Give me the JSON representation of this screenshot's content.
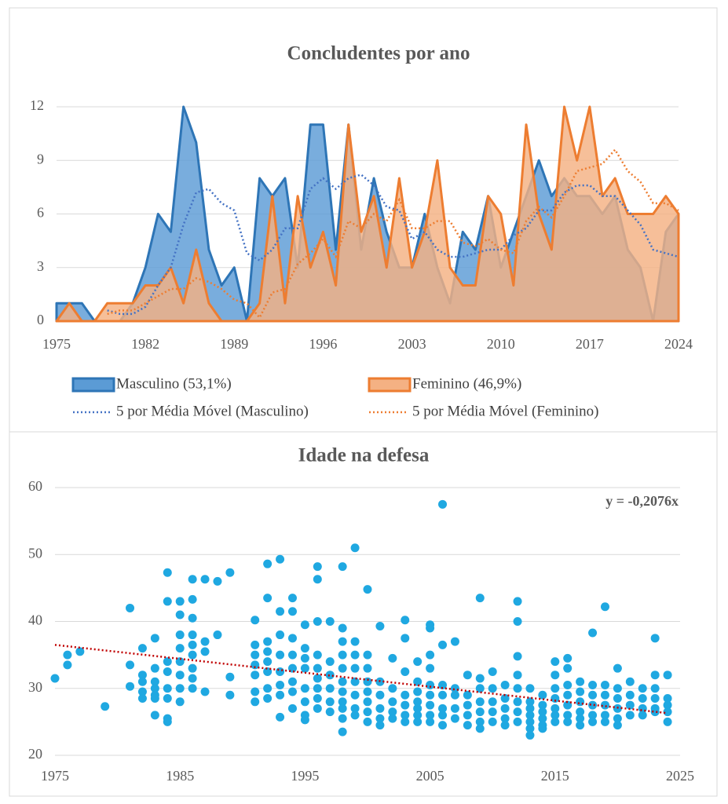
{
  "chart_data": [
    {
      "type": "area",
      "title": "Concludentes por ano",
      "x": [
        1975,
        1976,
        1977,
        1978,
        1979,
        1980,
        1981,
        1982,
        1983,
        1984,
        1985,
        1986,
        1987,
        1988,
        1989,
        1990,
        1991,
        1992,
        1993,
        1994,
        1995,
        1996,
        1997,
        1998,
        1999,
        2000,
        2001,
        2002,
        2003,
        2004,
        2005,
        2006,
        2007,
        2008,
        2009,
        2010,
        2011,
        2012,
        2013,
        2014,
        2015,
        2016,
        2017,
        2018,
        2019,
        2020,
        2021,
        2022,
        2023,
        2024
      ],
      "xlim": [
        1975,
        2024
      ],
      "xticks": [
        1975,
        1982,
        1989,
        1996,
        2003,
        2010,
        2017,
        2024
      ],
      "ylim": [
        0,
        12
      ],
      "yticks": [
        0,
        3,
        6,
        9,
        12
      ],
      "grid": true,
      "series": [
        {
          "name": "Masculino (53,1%)",
          "type": "area",
          "color": "#2e75b6",
          "fill": "#5b9bd5",
          "values": [
            1,
            1,
            1,
            0,
            0,
            0,
            1,
            3,
            6,
            5,
            12,
            10,
            4,
            2,
            3,
            0,
            8,
            7,
            8,
            3,
            11,
            11,
            4,
            11,
            4,
            8,
            5,
            3,
            3,
            6,
            3,
            1,
            5,
            4,
            7,
            3,
            5,
            7,
            9,
            7,
            8,
            7,
            7,
            6,
            7,
            4,
            3,
            0,
            5,
            6
          ]
        },
        {
          "name": "Feminino (46,9%)",
          "type": "area",
          "color": "#ed7d31",
          "fill": "#f4b183",
          "values": [
            0,
            1,
            0,
            0,
            1,
            1,
            1,
            2,
            2,
            3,
            1,
            4,
            1,
            0,
            0,
            0,
            1,
            7,
            1,
            7,
            3,
            5,
            2,
            11,
            5,
            7,
            3,
            8,
            3,
            5,
            9,
            3,
            2,
            2,
            7,
            6,
            2,
            11,
            6,
            4,
            12,
            9,
            12,
            7,
            8,
            6,
            6,
            6,
            7,
            6
          ]
        },
        {
          "name": "5 por Média Móvel (Masculino)",
          "type": "line",
          "color": "#4472c4",
          "values": [
            null,
            null,
            null,
            null,
            0.6,
            0.4,
            0.4,
            0.8,
            2,
            3,
            5.4,
            7.2,
            7.4,
            6.6,
            6.2,
            3.8,
            3.4,
            4,
            5.2,
            5.2,
            7.4,
            8,
            7.4,
            8,
            8.2,
            7.6,
            6.4,
            6.2,
            4.6,
            5,
            4,
            3.6,
            3.6,
            3.8,
            4,
            4,
            4.8,
            5.2,
            6.2,
            6.2,
            7.2,
            7.6,
            7.6,
            7,
            7,
            6.2,
            5.4,
            4,
            3.8,
            3.6
          ]
        },
        {
          "name": "5 por Média Móvel (Feminino)",
          "type": "line",
          "color": "#ed7d31",
          "values": [
            null,
            null,
            null,
            null,
            0.4,
            0.6,
            0.6,
            1,
            1.4,
            1.8,
            1.8,
            2.4,
            2.2,
            1.8,
            1.2,
            1,
            0.2,
            1.6,
            1.8,
            3.2,
            3.8,
            4.6,
            3.6,
            5.6,
            5.2,
            6,
            5.6,
            6.8,
            5.2,
            5.2,
            5.6,
            5.6,
            4.4,
            4.2,
            4.6,
            4,
            3.8,
            5.6,
            6.4,
            5.8,
            7,
            8.4,
            8.6,
            8.8,
            9.6,
            8.4,
            7.8,
            6.6,
            6.6,
            6.2
          ]
        }
      ]
    },
    {
      "type": "scatter",
      "title": "Idade na defesa",
      "color": "#1fa8e1",
      "xlim": [
        1975,
        2025
      ],
      "xticks": [
        1975,
        1985,
        1995,
        2005,
        2015,
        2025
      ],
      "ylim": [
        20,
        60
      ],
      "yticks": [
        20,
        30,
        40,
        50,
        60
      ],
      "grid": true,
      "annotation": "y = -0,2076x",
      "trendline": {
        "x": [
          1975,
          2024
        ],
        "values": [
          36.5,
          26.3
        ],
        "color": "#c00000"
      },
      "x": [
        1975,
        1976,
        1976,
        1977,
        1979,
        1981,
        1981,
        1981,
        1982,
        1982,
        1982,
        1982,
        1982,
        1983,
        1983,
        1983,
        1983,
        1983,
        1983,
        1983,
        1984,
        1984,
        1984,
        1984,
        1984,
        1984,
        1984,
        1984,
        1985,
        1985,
        1985,
        1985,
        1985,
        1985,
        1985,
        1985,
        1986,
        1986,
        1986,
        1986,
        1986,
        1986,
        1986,
        1986,
        1986,
        1987,
        1987,
        1987,
        1987,
        1988,
        1988,
        1989,
        1989,
        1989,
        1991,
        1991,
        1991,
        1991,
        1991,
        1991,
        1991,
        1992,
        1992,
        1992,
        1992,
        1992,
        1992,
        1992,
        1992,
        1993,
        1993,
        1993,
        1993,
        1993,
        1993,
        1993,
        1993,
        1994,
        1994,
        1994,
        1994,
        1994,
        1994,
        1994,
        1994,
        1995,
        1995,
        1995,
        1995,
        1995,
        1995,
        1995,
        1995,
        1996,
        1996,
        1996,
        1996,
        1996,
        1996,
        1996,
        1996,
        1996,
        1997,
        1997,
        1997,
        1997,
        1997,
        1997,
        1998,
        1998,
        1998,
        1998,
        1998,
        1998,
        1998,
        1998,
        1998,
        1998,
        1998,
        1999,
        1999,
        1999,
        1999,
        1999,
        1999,
        1999,
        1999,
        2000,
        2000,
        2000,
        2000,
        2000,
        2000,
        2000,
        2000,
        2001,
        2001,
        2001,
        2001,
        2001,
        2001,
        2002,
        2002,
        2002,
        2002,
        2002,
        2003,
        2003,
        2003,
        2003,
        2003,
        2003,
        2003,
        2004,
        2004,
        2004,
        2004,
        2004,
        2004,
        2004,
        2005,
        2005,
        2005,
        2005,
        2005,
        2005,
        2005,
        2005,
        2005,
        2006,
        2006,
        2006,
        2006,
        2006,
        2006,
        2006,
        2007,
        2007,
        2007,
        2007,
        2007,
        2008,
        2008,
        2008,
        2008,
        2008,
        2009,
        2009,
        2009,
        2009,
        2009,
        2009,
        2009,
        2010,
        2010,
        2010,
        2010,
        2010,
        2011,
        2011,
        2011,
        2011,
        2011,
        2012,
        2012,
        2012,
        2012,
        2012,
        2012,
        2012,
        2012,
        2013,
        2013,
        2013,
        2013,
        2013,
        2013,
        2013,
        2014,
        2014,
        2014,
        2014,
        2014,
        2014,
        2015,
        2015,
        2015,
        2015,
        2015,
        2015,
        2015,
        2016,
        2016,
        2016,
        2016,
        2016,
        2016,
        2016,
        2017,
        2017,
        2017,
        2017,
        2017,
        2017,
        2018,
        2018,
        2018,
        2018,
        2018,
        2018,
        2019,
        2019,
        2019,
        2019,
        2019,
        2019,
        2020,
        2020,
        2020,
        2020,
        2020,
        2020,
        2021,
        2021,
        2021,
        2021,
        2022,
        2022,
        2022,
        2022,
        2023,
        2023,
        2023,
        2023,
        2023,
        2023,
        2024,
        2024,
        2024,
        2024,
        2024
      ],
      "values": [
        31.5,
        35,
        33.5,
        35.5,
        27.3,
        42,
        33.5,
        30.3,
        36,
        32,
        31,
        29.5,
        28.5,
        37.5,
        33,
        31,
        30,
        29,
        28.5,
        26,
        47.3,
        43,
        34,
        32.5,
        30,
        28.5,
        25.5,
        25,
        43,
        41,
        38,
        36,
        34,
        32,
        30,
        28,
        46.3,
        43.3,
        40.5,
        38,
        36.5,
        35,
        33,
        31.5,
        30,
        46.3,
        37,
        35.5,
        29.5,
        46,
        38,
        47.3,
        31.7,
        29,
        40.2,
        36.5,
        35,
        33.5,
        32,
        29.5,
        28,
        48.6,
        43.5,
        37,
        35.5,
        34,
        32.5,
        30,
        28.5,
        49.3,
        41.5,
        38,
        35,
        32.5,
        30.5,
        29,
        25.7,
        43.5,
        41.5,
        37.5,
        35,
        33,
        31,
        29.5,
        27,
        39.5,
        36,
        34.5,
        33,
        30,
        28,
        26,
        25.3,
        48.2,
        46.3,
        40,
        35,
        33,
        31.5,
        30,
        28.5,
        27,
        40,
        34,
        32,
        30,
        28,
        26.5,
        48.2,
        39,
        37,
        35,
        33,
        31,
        29.5,
        28,
        27,
        25.5,
        23.5,
        51,
        37,
        35,
        33,
        31,
        29,
        27,
        26,
        44.8,
        35,
        33,
        31,
        29.5,
        28,
        26.5,
        25,
        39.3,
        31,
        29,
        27,
        25.5,
        24.5,
        34.5,
        30,
        28,
        26.5,
        25.5,
        40.2,
        37.5,
        32.5,
        29,
        27.5,
        26,
        25,
        34,
        31,
        29.5,
        28,
        27,
        26,
        25,
        39.5,
        39,
        35,
        33,
        30.5,
        29,
        27.5,
        26,
        25,
        57.5,
        36.5,
        30.5,
        29,
        27,
        26,
        24.5,
        37,
        30,
        29,
        27,
        25.5,
        32,
        29,
        27.5,
        26,
        24.5,
        43.5,
        31.5,
        30,
        28,
        26.5,
        25,
        24,
        32.5,
        30,
        28,
        26.5,
        25,
        30.5,
        28.5,
        27,
        25.5,
        24.5,
        43,
        40,
        34.8,
        32,
        30,
        28,
        26.5,
        25,
        30,
        28,
        27,
        26,
        25,
        24,
        23,
        29,
        27.5,
        26.5,
        25.5,
        24.5,
        24,
        34,
        32,
        30,
        28.5,
        27,
        26,
        25,
        34.5,
        33,
        30.5,
        29,
        27.5,
        26,
        25,
        31,
        29.5,
        28,
        26.5,
        25.5,
        24.5,
        38.3,
        30.5,
        29,
        27.5,
        26,
        25,
        42.2,
        30.5,
        29,
        27.5,
        26,
        25,
        33,
        30,
        28.5,
        27,
        25.5,
        24.5,
        31,
        29,
        27.5,
        26,
        30,
        28.5,
        27,
        26,
        37.5,
        32,
        30,
        28.5,
        27,
        26.5,
        32,
        28.5,
        27.5,
        26.5,
        25
      ]
    }
  ]
}
